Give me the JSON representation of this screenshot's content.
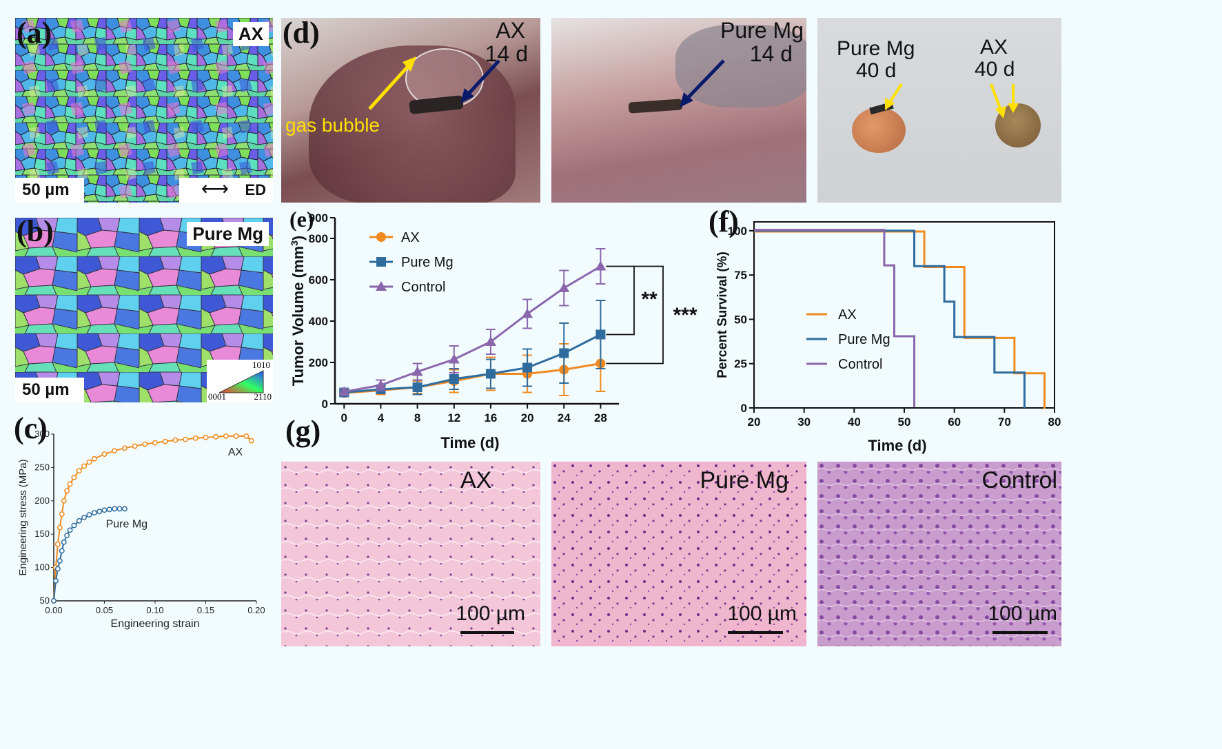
{
  "panels": {
    "a": {
      "label": "(a)",
      "tag": "AX",
      "scale": "50 µm",
      "direction": "ED"
    },
    "b": {
      "label": "(b)",
      "tag": "Pure Mg",
      "scale": "50 µm",
      "key": {
        "top": "1010",
        "left": "0001",
        "right": "2110"
      }
    },
    "c": {
      "label": "(c)"
    },
    "d": {
      "label": "(d)",
      "photos": [
        {
          "title": "AX",
          "subtitle": "14 d",
          "annotation": "gas bubble"
        },
        {
          "title": "Pure Mg",
          "subtitle": "14 d"
        },
        {
          "title_left": "Pure Mg",
          "subtitle_left": "40 d",
          "title_right": "AX",
          "subtitle_right": "40 d"
        }
      ]
    },
    "e": {
      "label": "(e)"
    },
    "f": {
      "label": "(f)"
    },
    "g": {
      "label": "(g)",
      "images": [
        {
          "title": "AX",
          "scale": "100 µm"
        },
        {
          "title": "Pure Mg",
          "scale": "100 µm"
        },
        {
          "title": "Control",
          "scale": "100 µm"
        }
      ]
    }
  },
  "colors": {
    "ax": "#f08a1e",
    "pure_mg": "#2e6c9e",
    "control": "#8a66ac"
  },
  "chart_data": [
    {
      "id": "c",
      "type": "scatter",
      "xlabel": "Engineering strain",
      "ylabel": "Engineering stress (MPa)",
      "xlim": [
        0,
        0.2
      ],
      "ylim": [
        50,
        300
      ],
      "xticks": [
        "0.00",
        "0.05",
        "0.10",
        "0.15",
        "0.20"
      ],
      "yticks": [
        "50",
        "100",
        "150",
        "200",
        "250",
        "300"
      ],
      "series": [
        {
          "name": "AX",
          "label": "AX",
          "x": [
            0.0,
            0.002,
            0.004,
            0.006,
            0.008,
            0.01,
            0.013,
            0.016,
            0.02,
            0.025,
            0.03,
            0.035,
            0.04,
            0.05,
            0.06,
            0.07,
            0.08,
            0.09,
            0.1,
            0.11,
            0.12,
            0.13,
            0.14,
            0.15,
            0.16,
            0.17,
            0.18,
            0.19,
            0.195
          ],
          "y": [
            50,
            100,
            135,
            160,
            180,
            200,
            215,
            225,
            235,
            245,
            252,
            258,
            263,
            270,
            275,
            279,
            282,
            285,
            287,
            289,
            291,
            292,
            294,
            295,
            296,
            297,
            297,
            297,
            290
          ]
        },
        {
          "name": "Pure Mg",
          "label": "Pure Mg",
          "x": [
            0.0,
            0.002,
            0.004,
            0.006,
            0.008,
            0.01,
            0.013,
            0.016,
            0.02,
            0.025,
            0.03,
            0.035,
            0.04,
            0.045,
            0.05,
            0.055,
            0.06,
            0.065,
            0.07
          ],
          "y": [
            50,
            80,
            98,
            110,
            125,
            138,
            148,
            156,
            163,
            170,
            175,
            179,
            182,
            184,
            186,
            187,
            188,
            188,
            188
          ]
        }
      ]
    },
    {
      "id": "e",
      "type": "line",
      "xlabel": "Time (d)",
      "ylabel": "Tumor Volume (mm",
      "ylabel_sup": "3",
      "ylabel_end": ")",
      "x": [
        0,
        4,
        8,
        12,
        16,
        20,
        24,
        28
      ],
      "xlim": [
        -1,
        30
      ],
      "ylim": [
        0,
        900
      ],
      "yticks": [
        0,
        200,
        400,
        600,
        800
      ],
      "ymax_tick": 900,
      "series": [
        {
          "name": "AX",
          "values": [
            52,
            65,
            80,
            110,
            145,
            145,
            165,
            195
          ],
          "err": [
            15,
            20,
            30,
            55,
            80,
            90,
            125,
            135
          ]
        },
        {
          "name": "Pure Mg",
          "values": [
            55,
            70,
            80,
            120,
            145,
            175,
            245,
            335
          ],
          "err": [
            15,
            20,
            35,
            50,
            70,
            90,
            145,
            165
          ]
        },
        {
          "name": "Control",
          "values": [
            58,
            90,
            155,
            215,
            300,
            435,
            560,
            665
          ],
          "err": [
            15,
            25,
            40,
            65,
            60,
            70,
            85,
            85
          ]
        }
      ],
      "significance": [
        {
          "label": "**",
          "from": "Pure Mg",
          "to": "Control"
        },
        {
          "label": "***",
          "from": "AX",
          "to": "Control"
        }
      ]
    },
    {
      "id": "f",
      "type": "line",
      "xlabel": "Time (d)",
      "ylabel": "Percent Survival (%)",
      "xlim": [
        20,
        80
      ],
      "ylim": [
        0,
        105
      ],
      "xticks": [
        20,
        30,
        40,
        50,
        60,
        70,
        80
      ],
      "yticks": [
        0,
        25,
        50,
        75,
        100
      ],
      "series": [
        {
          "name": "AX",
          "steps": [
            [
              20,
              100
            ],
            [
              54,
              100
            ],
            [
              54,
              80
            ],
            [
              62,
              80
            ],
            [
              62,
              60
            ],
            [
              62,
              40
            ],
            [
              72,
              40
            ],
            [
              72,
              20
            ],
            [
              78,
              20
            ],
            [
              78,
              0
            ]
          ]
        },
        {
          "name": "Pure Mg",
          "steps": [
            [
              20,
              100
            ],
            [
              52,
              100
            ],
            [
              52,
              80
            ],
            [
              58,
              80
            ],
            [
              58,
              60
            ],
            [
              60,
              60
            ],
            [
              60,
              40
            ],
            [
              68,
              40
            ],
            [
              68,
              20
            ],
            [
              74,
              20
            ],
            [
              74,
              0
            ]
          ]
        },
        {
          "name": "Control",
          "steps": [
            [
              20,
              100
            ],
            [
              46,
              100
            ],
            [
              46,
              80
            ],
            [
              48,
              80
            ],
            [
              48,
              40
            ],
            [
              52,
              40
            ],
            [
              52,
              0
            ]
          ]
        }
      ]
    }
  ]
}
